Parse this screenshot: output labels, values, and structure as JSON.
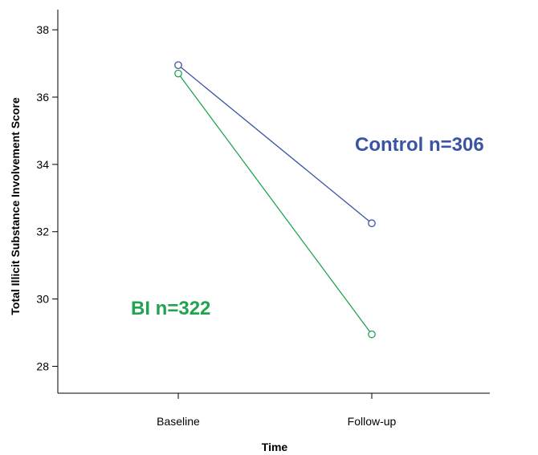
{
  "chart_data": {
    "type": "line",
    "title": "",
    "xlabel": "Time",
    "ylabel": "Total Illicit Substance Involvement Score",
    "categories": [
      "Baseline",
      "Follow-up"
    ],
    "ylim": [
      27.2,
      38.6
    ],
    "yticks": [
      28,
      30,
      32,
      34,
      36,
      38
    ],
    "grid": false,
    "series": [
      {
        "name": "Control n=306",
        "color": "#3a54a4",
        "values": [
          36.95,
          32.25
        ]
      },
      {
        "name": "BI n=322",
        "color": "#22a352",
        "values": [
          36.7,
          28.95
        ]
      }
    ]
  }
}
